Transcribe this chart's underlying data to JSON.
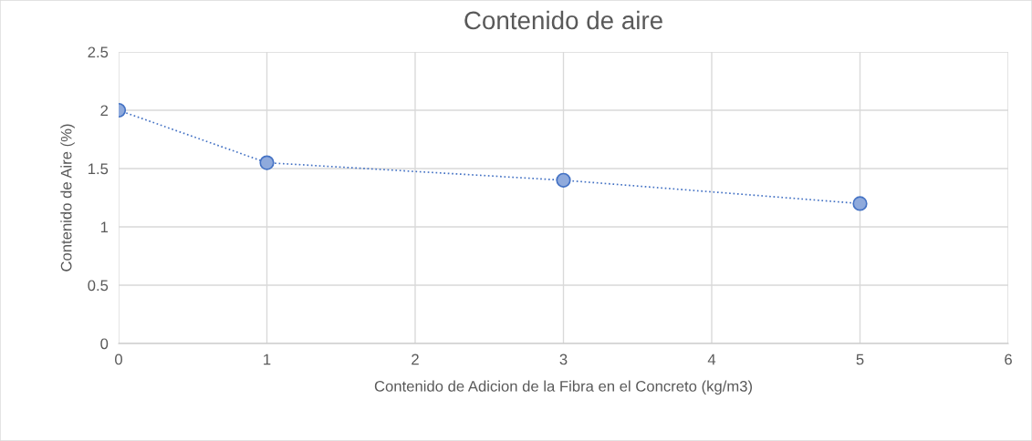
{
  "chart_data": {
    "type": "line",
    "title": "Contenido de aire",
    "xlabel": "Contenido de Adicion de la Fibra en el Concreto (kg/m3)",
    "ylabel": "Contenido de Aire (%)",
    "x": [
      0,
      1,
      3,
      5
    ],
    "series": [
      {
        "values": [
          2,
          1.55,
          1.4,
          1.2
        ],
        "color": "#4472c4"
      }
    ],
    "marker": "circle",
    "line_style": "dotted",
    "xlim": [
      0,
      6
    ],
    "xticks": [
      0,
      1,
      2,
      3,
      4,
      5,
      6
    ],
    "ylim": [
      0,
      2.5
    ],
    "yticks": [
      0,
      0.5,
      1,
      1.5,
      2,
      2.5
    ],
    "grid": true
  }
}
